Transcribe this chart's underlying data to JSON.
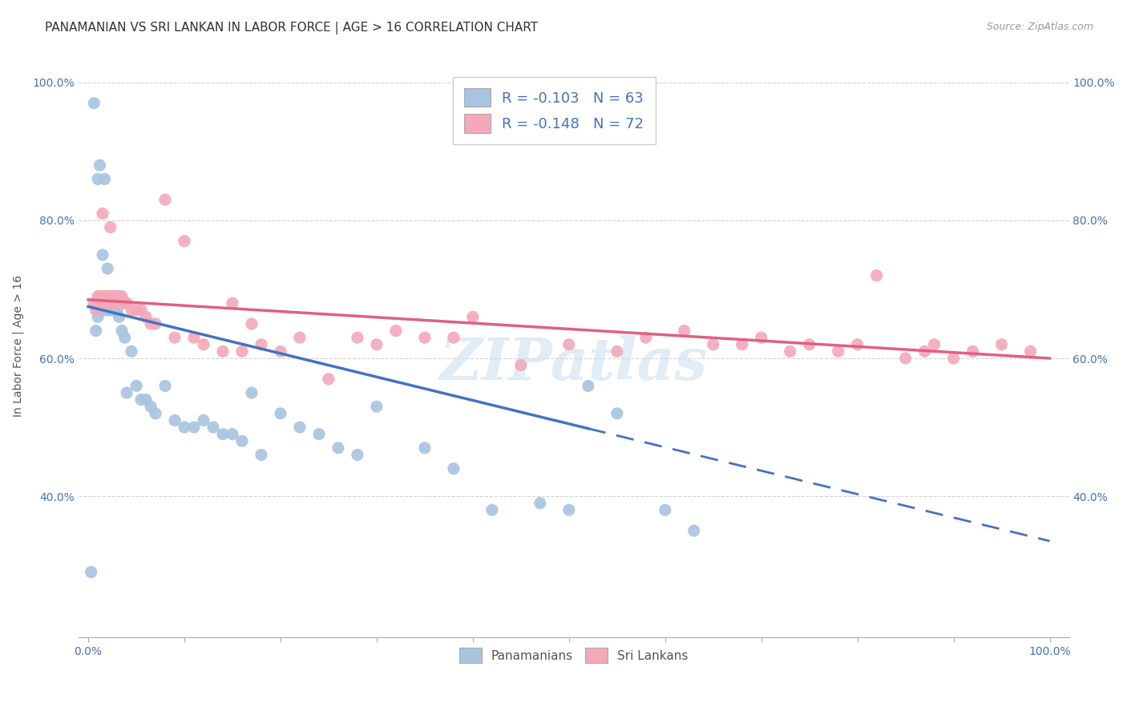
{
  "title": "PANAMANIAN VS SRI LANKAN IN LABOR FORCE | AGE > 16 CORRELATION CHART",
  "source": "Source: ZipAtlas.com",
  "ylabel": "In Labor Force | Age > 16",
  "watermark": "ZIPatlas",
  "pan_R": -0.103,
  "pan_N": 63,
  "sri_R": -0.148,
  "sri_N": 72,
  "pan_color": "#a8c4e0",
  "sri_color": "#f4a8b8",
  "pan_line_color": "#4472c4",
  "sri_line_color": "#e06080",
  "background_color": "#ffffff",
  "grid_color": "#d0d0d0",
  "title_fontsize": 11,
  "label_fontsize": 10,
  "tick_fontsize": 10,
  "pan_scatter_x": [
    0.003,
    0.006,
    0.008,
    0.01,
    0.01,
    0.012,
    0.013,
    0.014,
    0.015,
    0.016,
    0.017,
    0.018,
    0.018,
    0.019,
    0.02,
    0.02,
    0.021,
    0.022,
    0.022,
    0.023,
    0.024,
    0.025,
    0.025,
    0.026,
    0.027,
    0.028,
    0.03,
    0.032,
    0.035,
    0.038,
    0.04,
    0.045,
    0.05,
    0.055,
    0.06,
    0.065,
    0.07,
    0.08,
    0.09,
    0.1,
    0.11,
    0.12,
    0.13,
    0.14,
    0.15,
    0.16,
    0.17,
    0.18,
    0.2,
    0.22,
    0.24,
    0.26,
    0.28,
    0.3,
    0.35,
    0.38,
    0.42,
    0.47,
    0.5,
    0.52,
    0.55,
    0.6,
    0.63
  ],
  "pan_scatter_y": [
    0.29,
    0.97,
    0.64,
    0.86,
    0.66,
    0.88,
    0.68,
    0.67,
    0.75,
    0.69,
    0.86,
    0.68,
    0.67,
    0.69,
    0.73,
    0.67,
    0.69,
    0.68,
    0.67,
    0.69,
    0.67,
    0.68,
    0.67,
    0.67,
    0.68,
    0.67,
    0.67,
    0.66,
    0.64,
    0.63,
    0.55,
    0.61,
    0.56,
    0.54,
    0.54,
    0.53,
    0.52,
    0.56,
    0.51,
    0.5,
    0.5,
    0.51,
    0.5,
    0.49,
    0.49,
    0.48,
    0.55,
    0.46,
    0.52,
    0.5,
    0.49,
    0.47,
    0.46,
    0.53,
    0.47,
    0.44,
    0.38,
    0.39,
    0.38,
    0.56,
    0.52,
    0.38,
    0.35
  ],
  "sri_scatter_x": [
    0.006,
    0.008,
    0.01,
    0.011,
    0.012,
    0.013,
    0.014,
    0.015,
    0.016,
    0.017,
    0.018,
    0.019,
    0.02,
    0.021,
    0.022,
    0.023,
    0.024,
    0.025,
    0.026,
    0.027,
    0.028,
    0.029,
    0.03,
    0.032,
    0.035,
    0.038,
    0.04,
    0.045,
    0.05,
    0.055,
    0.06,
    0.065,
    0.07,
    0.08,
    0.09,
    0.1,
    0.11,
    0.12,
    0.14,
    0.15,
    0.16,
    0.17,
    0.18,
    0.2,
    0.22,
    0.25,
    0.28,
    0.3,
    0.32,
    0.35,
    0.38,
    0.4,
    0.45,
    0.5,
    0.55,
    0.58,
    0.62,
    0.65,
    0.68,
    0.7,
    0.73,
    0.75,
    0.78,
    0.8,
    0.82,
    0.85,
    0.87,
    0.88,
    0.9,
    0.92,
    0.95,
    0.98
  ],
  "sri_scatter_y": [
    0.68,
    0.67,
    0.69,
    0.68,
    0.69,
    0.68,
    0.69,
    0.81,
    0.69,
    0.69,
    0.69,
    0.68,
    0.69,
    0.69,
    0.69,
    0.79,
    0.68,
    0.69,
    0.69,
    0.69,
    0.69,
    0.68,
    0.69,
    0.69,
    0.69,
    0.68,
    0.68,
    0.67,
    0.67,
    0.67,
    0.66,
    0.65,
    0.65,
    0.83,
    0.63,
    0.77,
    0.63,
    0.62,
    0.61,
    0.68,
    0.61,
    0.65,
    0.62,
    0.61,
    0.63,
    0.57,
    0.63,
    0.62,
    0.64,
    0.63,
    0.63,
    0.66,
    0.59,
    0.62,
    0.61,
    0.63,
    0.64,
    0.62,
    0.62,
    0.63,
    0.61,
    0.62,
    0.61,
    0.62,
    0.72,
    0.6,
    0.61,
    0.62,
    0.6,
    0.61,
    0.62,
    0.61
  ]
}
